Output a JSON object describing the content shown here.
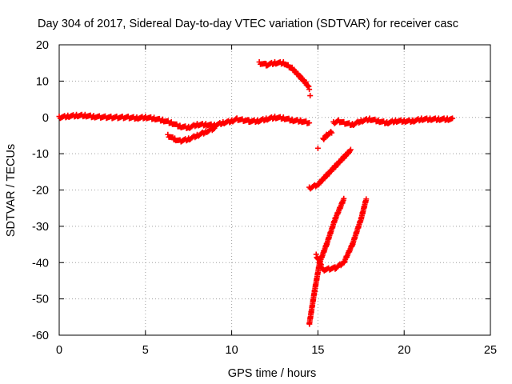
{
  "chart_data": {
    "type": "scatter",
    "title": "Day 304 of 2017, Sidereal Day-to-day VTEC variation (SDTVAR) for receiver casc",
    "xlabel": "GPS time / hours",
    "ylabel": "SDTVAR / TECUs",
    "xlim": [
      0,
      25
    ],
    "ylim": [
      -60,
      20
    ],
    "xticks": [
      0,
      5,
      10,
      15,
      20,
      25
    ],
    "yticks": [
      -60,
      -50,
      -40,
      -30,
      -20,
      -10,
      0,
      10,
      20
    ],
    "grid": true,
    "marker": "+",
    "color": "#ff0000",
    "series": [
      {
        "segments": [
          [
            [
              0,
              0
            ],
            [
              0.5,
              0.3
            ],
            [
              1,
              0.5
            ],
            [
              1.5,
              0.5
            ],
            [
              2,
              0.2
            ],
            [
              3,
              0
            ],
            [
              4,
              0
            ],
            [
              4.5,
              -0.2
            ],
            [
              5,
              0
            ],
            [
              5.5,
              -0.3
            ],
            [
              6,
              -0.8
            ],
            [
              6.5,
              -1.5
            ],
            [
              7,
              -2.5
            ],
            [
              7.5,
              -2.8
            ],
            [
              8,
              -2
            ],
            [
              8.5,
              -2
            ],
            [
              9,
              -2.2
            ],
            [
              9.5,
              -1.5
            ],
            [
              10,
              -1
            ],
            [
              10.3,
              -0.5
            ],
            [
              11,
              -1
            ],
            [
              11.5,
              -1
            ],
            [
              12,
              -0.5
            ],
            [
              12.5,
              0
            ],
            [
              13,
              -0.2
            ],
            [
              13.5,
              -0.8
            ],
            [
              14,
              -1
            ],
            [
              14.5,
              -1.5
            ]
          ],
          [
            [
              6.3,
              -5
            ],
            [
              6.7,
              -6
            ],
            [
              7,
              -6.5
            ],
            [
              7.5,
              -6
            ],
            [
              8,
              -5
            ],
            [
              8.5,
              -4
            ],
            [
              9,
              -3
            ]
          ],
          [
            [
              11.6,
              15
            ],
            [
              12,
              14.5
            ],
            [
              12.5,
              15
            ],
            [
              13,
              15
            ],
            [
              13.5,
              13.5
            ],
            [
              14,
              11
            ],
            [
              14.3,
              9.5
            ],
            [
              14.5,
              8
            ]
          ],
          [
            [
              14.55,
              6
            ]
          ],
          [
            [
              15,
              -8.5
            ]
          ],
          [
            [
              15.3,
              -6
            ],
            [
              15.5,
              -5
            ],
            [
              15.8,
              -4
            ]
          ],
          [
            [
              15.9,
              -1.5
            ],
            [
              16.2,
              -1
            ],
            [
              16.5,
              -1.5
            ],
            [
              17,
              -2
            ],
            [
              17.5,
              -1
            ],
            [
              18,
              -0.5
            ],
            [
              18.5,
              -1
            ],
            [
              19,
              -1.5
            ],
            [
              19.5,
              -1
            ],
            [
              20,
              -1
            ],
            [
              20.5,
              -1
            ],
            [
              21,
              -0.5
            ],
            [
              21.5,
              -0.5
            ],
            [
              22,
              -0.5
            ],
            [
              22.5,
              -0.5
            ],
            [
              22.8,
              -0.5
            ]
          ],
          [
            [
              14.5,
              -19.5
            ],
            [
              15,
              -18.5
            ],
            [
              15.5,
              -16
            ],
            [
              16,
              -13.5
            ],
            [
              16.5,
              -11
            ],
            [
              16.9,
              -9
            ]
          ],
          [
            [
              14.5,
              -57
            ],
            [
              14.8,
              -48
            ],
            [
              15.1,
              -40
            ],
            [
              15.5,
              -35
            ],
            [
              16,
              -28
            ],
            [
              16.5,
              -22.5
            ]
          ],
          [
            [
              14.9,
              -38
            ],
            [
              15.3,
              -42
            ],
            [
              16,
              -41.5
            ],
            [
              16.5,
              -40
            ],
            [
              17,
              -35
            ],
            [
              17.5,
              -28
            ],
            [
              17.8,
              -22.5
            ]
          ]
        ]
      }
    ]
  }
}
